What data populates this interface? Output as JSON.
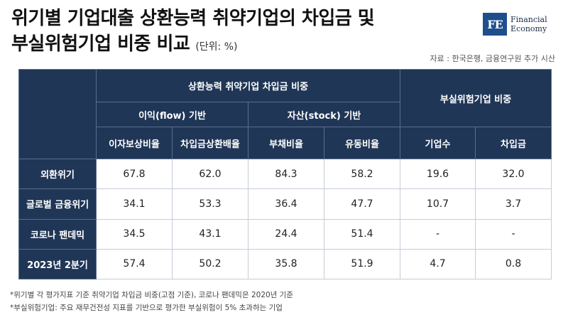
{
  "header": {
    "title_line1": "위기별 기업대출 상환능력 취약기업의 차입금 및",
    "title_line2": "부실위험기업 비중 비교",
    "unit": "(단위: %)",
    "source": "자료 : 한국은행, 금융연구원 추가 시산"
  },
  "logo": {
    "mark": "FE",
    "line1": "Financial",
    "line2": "Economy"
  },
  "table": {
    "group_vulnerable": "상환능력 취약기업 차입금 비중",
    "group_flow": "이익(flow) 기반",
    "group_stock": "자산(stock) 기반",
    "group_insolvent": "부실위험기업 비중",
    "columns": [
      "이자보상비율",
      "차입금상환배율",
      "부채비율",
      "유동비율",
      "기업수",
      "차입금"
    ],
    "rows": [
      {
        "label": "외환위기",
        "values": [
          "67.8",
          "62.0",
          "84.3",
          "58.2",
          "19.6",
          "32.0"
        ]
      },
      {
        "label": "글로벌 금융위기",
        "values": [
          "34.1",
          "53.3",
          "36.4",
          "47.7",
          "10.7",
          "3.7"
        ]
      },
      {
        "label": "코로나 팬데믹",
        "values": [
          "34.5",
          "43.1",
          "24.4",
          "51.4",
          "-",
          "-"
        ]
      },
      {
        "label": "2023년 2분기",
        "values": [
          "57.4",
          "50.2",
          "35.8",
          "51.9",
          "4.7",
          "0.8"
        ]
      }
    ]
  },
  "footnotes": [
    "*위기별 각 평가지표 기준 취약기업 차입금 비중(고점 기준), 코로나 팬데믹은 2020년 기준",
    "*부실위험기업: 주요 재무건전성 지표를 기반으로 평가한 부실위험이 5% 초과하는 기업"
  ]
}
